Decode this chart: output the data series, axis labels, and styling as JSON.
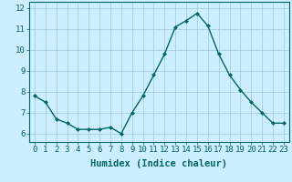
{
  "x": [
    0,
    1,
    2,
    3,
    4,
    5,
    6,
    7,
    8,
    9,
    10,
    11,
    12,
    13,
    14,
    15,
    16,
    17,
    18,
    19,
    20,
    21,
    22,
    23
  ],
  "y": [
    7.8,
    7.5,
    6.7,
    6.5,
    6.2,
    6.2,
    6.2,
    6.3,
    6.0,
    7.0,
    7.8,
    8.8,
    9.8,
    11.1,
    11.4,
    11.75,
    11.15,
    9.8,
    8.8,
    8.1,
    7.5,
    7.0,
    6.5,
    6.5
  ],
  "line_color": "#006666",
  "marker": "D",
  "markersize": 2.0,
  "linewidth": 1.0,
  "bg_color": "#cceeff",
  "grid_color": "#99cccc",
  "xlabel": "Humidex (Indice chaleur)",
  "ylim": [
    5.6,
    12.3
  ],
  "xlim": [
    -0.5,
    23.5
  ],
  "yticks": [
    6,
    7,
    8,
    9,
    10,
    11,
    12
  ],
  "xticks": [
    0,
    1,
    2,
    3,
    4,
    5,
    6,
    7,
    8,
    9,
    10,
    11,
    12,
    13,
    14,
    15,
    16,
    17,
    18,
    19,
    20,
    21,
    22,
    23
  ],
  "xtick_labels": [
    "0",
    "1",
    "2",
    "3",
    "4",
    "5",
    "6",
    "7",
    "8",
    "9",
    "10",
    "11",
    "12",
    "13",
    "14",
    "15",
    "16",
    "17",
    "18",
    "19",
    "20",
    "21",
    "22",
    "23"
  ],
  "axis_color": "#006666",
  "tick_fontsize": 6.5,
  "xlabel_fontsize": 7.5
}
